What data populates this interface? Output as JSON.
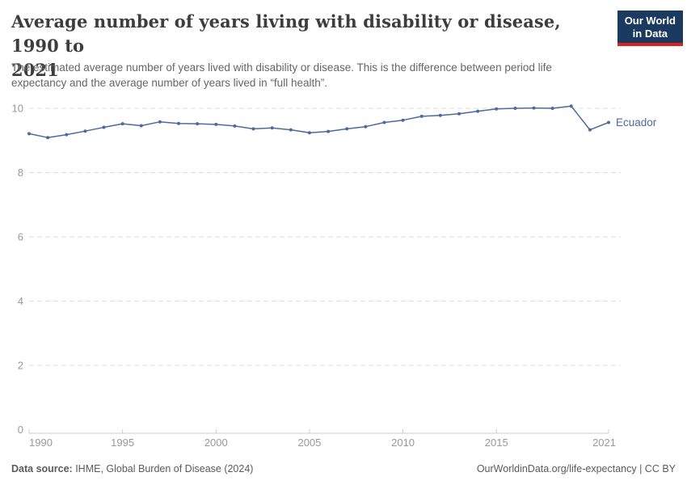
{
  "header": {
    "title_line1": "Average number of years living with disability or disease, 1990 to",
    "title_line2": "2021",
    "subtitle_line1": "The estimated average number of years lived with disability or disease. This is the difference between period life",
    "subtitle_line2": "expectancy and the average number of years lived in “full health”.",
    "logo_line1": "Our World",
    "logo_line2": "in Data"
  },
  "footer": {
    "source_label": "Data source:",
    "source_text": " IHME, Global Burden of Disease (2024)",
    "link_text": "OurWorldinData.org/life-expectancy | CC BY"
  },
  "colors": {
    "line": "#4C6A9C",
    "entity_label": "#4C6A9C",
    "grid": "#dddddd",
    "axis_tick_label": "#999999",
    "axis_line": "#cccccc",
    "logo_bg": "#1a3a5f",
    "logo_stripe": "#d8241c",
    "title": "#3d3d3d",
    "subtitle": "#666666",
    "footer_text": "#5b5b5b"
  },
  "chart_data": {
    "type": "line",
    "title": "Average number of years living with disability or disease, 1990 to 2021",
    "xlabel": "",
    "ylabel": "",
    "x": [
      1990,
      1991,
      1992,
      1993,
      1994,
      1995,
      1996,
      1997,
      1998,
      1999,
      2000,
      2001,
      2002,
      2003,
      2004,
      2005,
      2006,
      2007,
      2008,
      2009,
      2010,
      2011,
      2012,
      2013,
      2014,
      2015,
      2016,
      2017,
      2018,
      2019,
      2020,
      2021
    ],
    "series": [
      {
        "name": "Ecuador",
        "values": [
          9.21,
          9.09,
          9.18,
          9.29,
          9.41,
          9.52,
          9.46,
          9.58,
          9.53,
          9.52,
          9.5,
          9.45,
          9.36,
          9.39,
          9.33,
          9.24,
          9.28,
          9.36,
          9.43,
          9.56,
          9.63,
          9.75,
          9.78,
          9.83,
          9.91,
          9.98,
          10.0,
          10.01,
          10.0,
          10.07,
          9.33,
          9.56
        ]
      }
    ],
    "entity_label": "Ecuador",
    "xlim": [
      1990,
      2021
    ],
    "ylim": [
      0,
      10
    ],
    "yticks": [
      0,
      2,
      4,
      6,
      8,
      10
    ],
    "xticks": [
      1990,
      1995,
      2000,
      2005,
      2010,
      2015,
      2021
    ],
    "grid": "horizontal-dashed",
    "legend_position": "end-of-line-label",
    "markers": true
  }
}
